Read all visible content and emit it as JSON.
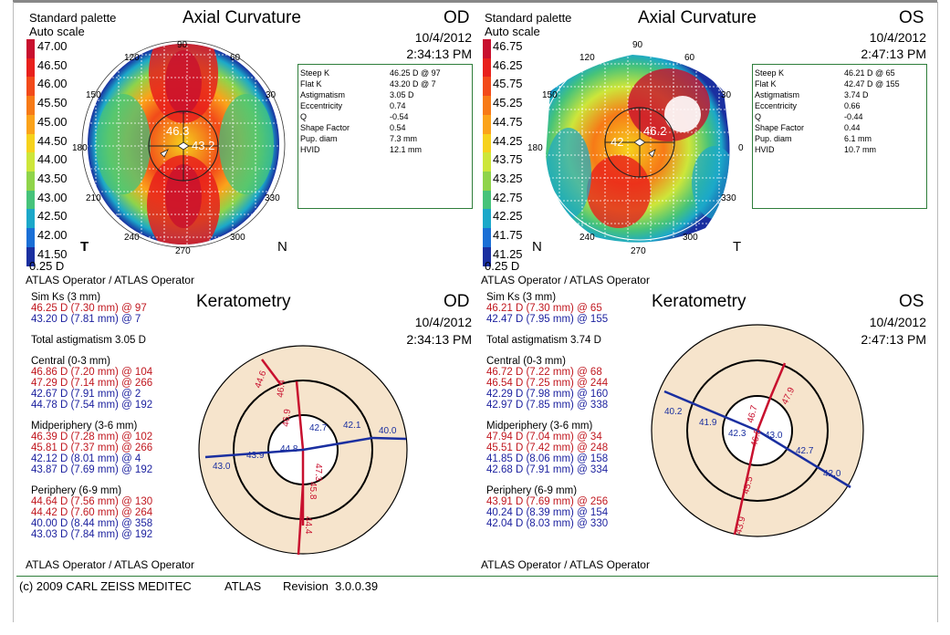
{
  "palette": {
    "line1": "Standard palette",
    "line2": "Auto scale",
    "step": "0.25 D"
  },
  "od_top": {
    "title": "Axial Curvature",
    "eye": "OD",
    "date": "10/4/2012",
    "time": "2:34:13 PM",
    "scale": [
      "47.00",
      "46.50",
      "46.00",
      "45.50",
      "45.00",
      "44.50",
      "44.00",
      "43.50",
      "43.00",
      "42.50",
      "42.00",
      "41.50"
    ],
    "map_left": "T",
    "map_right": "N",
    "angles": {
      "a90": "90",
      "a60": "60",
      "a120": "120",
      "a150": "150",
      "a30": "30",
      "a180": "180",
      "a210": "210",
      "a330": "330",
      "a240": "240",
      "a270": "270",
      "a300": "300"
    },
    "steep_label": "46.3",
    "flat_label": "43.2",
    "info": [
      {
        "k": "Steep K",
        "v": "46.25 D @ 97"
      },
      {
        "k": "Flat K",
        "v": "43.20 D @ 7"
      },
      {
        "k": "Astigmatism",
        "v": "3.05 D"
      },
      {
        "k": "Eccentricity",
        "v": "0.74"
      },
      {
        "k": "Q",
        "v": "-0.54"
      },
      {
        "k": "Shape Factor",
        "v": "0.54"
      },
      {
        "k": "Pup. diam",
        "v": "7.3 mm"
      },
      {
        "k": "HVID",
        "v": "12.1 mm"
      }
    ],
    "operator": "ATLAS Operator / ATLAS Operator"
  },
  "os_top": {
    "title": "Axial Curvature",
    "eye": "OS",
    "date": "10/4/2012",
    "time": "2:47:13 PM",
    "scale": [
      "46.75",
      "46.25",
      "45.75",
      "45.25",
      "44.75",
      "44.25",
      "43.75",
      "43.25",
      "42.75",
      "42.25",
      "41.75",
      "41.25"
    ],
    "map_left": "N",
    "map_right": "T",
    "angles": {
      "a90": "90",
      "a60": "60",
      "a120": "120",
      "a150": "150",
      "a30": "30",
      "a180": "180",
      "a0": "0",
      "a330": "330",
      "a240": "240",
      "a270": "270",
      "a300": "300"
    },
    "steep_label": "46.2",
    "flat_label": "42",
    "info": [
      {
        "k": "Steep K",
        "v": "46.21 D @ 65"
      },
      {
        "k": "Flat K",
        "v": "42.47 D @ 155"
      },
      {
        "k": "Astigmatism",
        "v": "3.74 D"
      },
      {
        "k": "Eccentricity",
        "v": "0.66"
      },
      {
        "k": "Q",
        "v": "-0.44"
      },
      {
        "k": "Shape Factor",
        "v": "0.44"
      },
      {
        "k": "Pup. diam",
        "v": "6.1 mm"
      },
      {
        "k": "HVID",
        "v": "10.7 mm"
      }
    ],
    "operator": "ATLAS Operator / ATLAS Operator"
  },
  "od_kera": {
    "title": "Keratometry",
    "eye": "OD",
    "date": "10/4/2012",
    "time": "2:34:13 PM",
    "simk_head": "Sim Ks (3 mm)",
    "simk": [
      "46.25 D (7.30 mm) @ 97",
      "43.20 D (7.81 mm) @ 7"
    ],
    "total_astig": "Total astigmatism 3.05 D",
    "central_head": "Central (0-3 mm)",
    "central": [
      "46.86 D (7.20 mm) @ 104",
      "47.29 D (7.14 mm) @ 266",
      "42.67 D (7.91 mm) @ 2",
      "44.78 D (7.54 mm) @ 192"
    ],
    "mid_head": "Midperiphery (3-6 mm)",
    "mid": [
      "46.39 D (7.28 mm) @ 102",
      "45.81 D (7.37 mm) @ 266",
      "42.12 D (8.01 mm) @ 4",
      "43.87 D (7.69 mm) @ 192"
    ],
    "peri_head": "Periphery (6-9 mm)",
    "peri": [
      "44.64 D (7.56 mm) @ 130",
      "44.42 D (7.60 mm) @ 264",
      "40.00 D (8.44 mm) @ 358",
      "43.03 D (7.84 mm) @ 192"
    ],
    "diagram": {
      "r_in_top": "46.9",
      "r_mid_top": "46.4",
      "r_out_top": "44.6",
      "r_in_bot": "47.3",
      "r_mid_bot": "45.8",
      "r_out_bot": "44.4",
      "b_in_r": "42.7",
      "b_mid_r": "42.1",
      "b_out_r": "40.0",
      "b_in_l": "44.8",
      "b_mid_l": "43.9",
      "b_out_l": "43.0"
    },
    "operator": "ATLAS Operator / ATLAS Operator"
  },
  "os_kera": {
    "title": "Keratometry",
    "eye": "OS",
    "date": "10/4/2012",
    "time": "2:47:13 PM",
    "simk_head": "Sim Ks (3 mm)",
    "simk": [
      "46.21 D (7.30 mm) @ 65",
      "42.47 D (7.95 mm) @ 155"
    ],
    "total_astig": "Total astigmatism 3.74 D",
    "central_head": "Central (0-3 mm)",
    "central": [
      "46.72 D (7.22 mm) @ 68",
      "46.54 D (7.25 mm) @ 244",
      "42.29 D (7.98 mm) @ 160",
      "42.97 D (7.85 mm) @ 338"
    ],
    "mid_head": "Midperiphery (3-6 mm)",
    "mid": [
      "47.94 D (7.04 mm) @ 34",
      "45.51 D (7.42 mm) @ 248",
      "41.85 D (8.06 mm) @ 158",
      "42.68 D (7.91 mm) @ 334"
    ],
    "peri_head": "Periphery (6-9 mm)",
    "peri": [
      "43.91 D (7.69 mm) @ 256",
      "40.24 D (8.39 mm) @ 154",
      "42.04 D (8.03 mm) @ 330"
    ],
    "diagram": {
      "r_in_top": "46.7",
      "r_mid_top": "47.9",
      "r_in_bot": "46.5",
      "r_mid_bot": "45.5",
      "r_out_bot": "43.9",
      "b_in_l": "42.3",
      "b_mid_l": "41.9",
      "b_out_l": "40.2",
      "b_in_r": "43.0",
      "b_mid_r": "42.7",
      "b_out_r": "42.0"
    },
    "operator": "ATLAS Operator / ATLAS Operator"
  },
  "footer": {
    "copyright": "(c) 2009 CARL ZEISS MEDITEC",
    "product": "ATLAS",
    "revision": "Revision  3.0.0.39"
  },
  "colors": {
    "scale": [
      "#c8102e",
      "#e8201c",
      "#f24a1a",
      "#f77a17",
      "#fba31a",
      "#f6d21c",
      "#cde63a",
      "#8fd44a",
      "#46c37a",
      "#1ba8c9",
      "#1a6fd6",
      "#1a2fa0"
    ],
    "frame": "#2e7d3a",
    "disc": "#f6e4cc"
  }
}
